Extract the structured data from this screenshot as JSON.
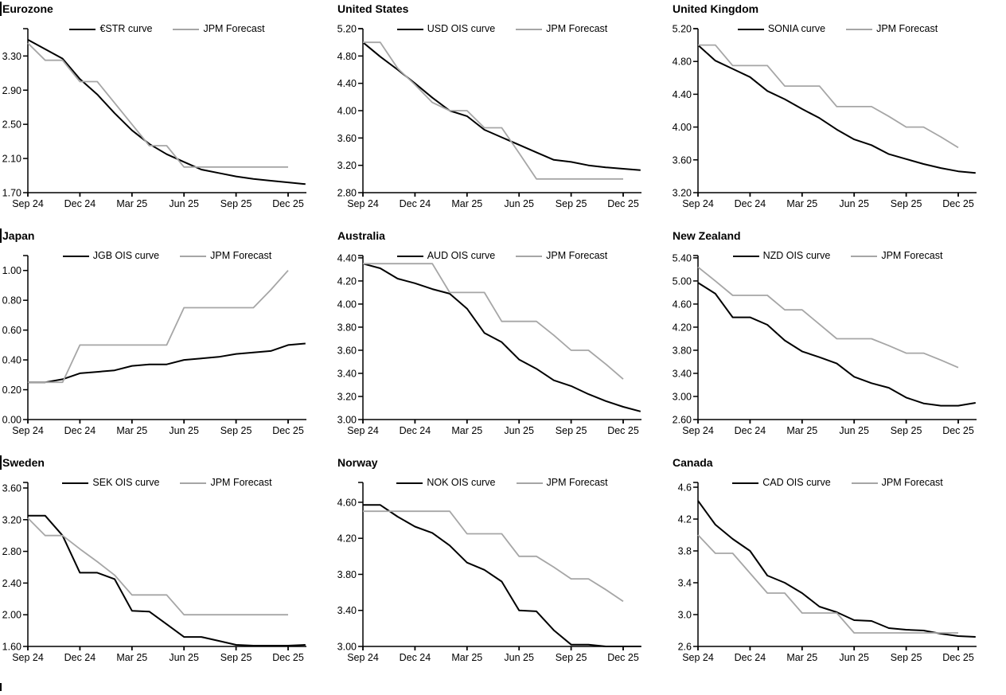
{
  "colors": {
    "curve": "#000000",
    "forecast": "#a6a6a6",
    "axis": "#000000",
    "text": "#000000"
  },
  "x_axis": {
    "tick_labels": [
      "Sep 24",
      "Dec 24",
      "Mar 25",
      "Jun 25",
      "Sep 25",
      "Dec 25"
    ],
    "tick_indices": [
      0,
      3,
      6,
      9,
      12,
      15
    ]
  },
  "chart_data": [
    {
      "type": "line",
      "title": "Eurozone",
      "edge_mark": true,
      "x_tick_labels": [
        "Sep 24",
        "Dec 24",
        "Mar 25",
        "Jun 25",
        "Sep 25",
        "Dec 25"
      ],
      "y_tick_labels": [
        "1.70",
        "2.10",
        "2.50",
        "2.90",
        "3.30"
      ],
      "y_tick_values": [
        1.7,
        2.1,
        2.5,
        2.9,
        3.3
      ],
      "ylim": [
        1.7,
        3.62
      ],
      "series": [
        {
          "name": "€STR curve",
          "color_key": "curve",
          "values": [
            3.49,
            3.38,
            3.27,
            3.03,
            2.85,
            2.63,
            2.43,
            2.27,
            2.15,
            2.06,
            1.97,
            1.93,
            1.89,
            1.86,
            1.84,
            1.82,
            1.8
          ]
        },
        {
          "name": "JPM Forecast",
          "color_key": "forecast",
          "values": [
            3.45,
            3.25,
            3.25,
            3.0,
            3.0,
            2.75,
            2.5,
            2.25,
            2.25,
            2.0,
            2.0,
            2.0,
            2.0,
            2.0,
            2.0,
            2.0
          ]
        }
      ]
    },
    {
      "type": "line",
      "title": "United States",
      "edge_mark": false,
      "x_tick_labels": [
        "Sep 24",
        "Dec 24",
        "Mar 25",
        "Jun 25",
        "Sep 25",
        "Dec 25"
      ],
      "y_tick_labels": [
        "2.80",
        "3.20",
        "3.60",
        "4.00",
        "4.40",
        "4.80",
        "5.20"
      ],
      "y_tick_values": [
        2.8,
        3.2,
        3.6,
        4.0,
        4.4,
        4.8,
        5.2
      ],
      "ylim": [
        2.8,
        5.2
      ],
      "series": [
        {
          "name": "USD OIS curve",
          "color_key": "curve",
          "values": [
            5.0,
            4.79,
            4.6,
            4.4,
            4.19,
            4.0,
            3.92,
            3.72,
            3.61,
            3.5,
            3.39,
            3.28,
            3.25,
            3.2,
            3.17,
            3.15,
            3.13
          ]
        },
        {
          "name": "JPM Forecast",
          "color_key": "forecast",
          "values": [
            5.0,
            5.0,
            4.62,
            4.38,
            4.12,
            4.0,
            4.0,
            3.75,
            3.75,
            3.38,
            3.0,
            3.0,
            3.0,
            3.0,
            3.0,
            3.0
          ]
        }
      ]
    },
    {
      "type": "line",
      "title": "United Kingdom",
      "edge_mark": false,
      "x_tick_labels": [
        "Sep 24",
        "Dec 24",
        "Mar 25",
        "Jun 25",
        "Sep 25",
        "Dec 25"
      ],
      "y_tick_labels": [
        "3.20",
        "3.60",
        "4.00",
        "4.40",
        "4.80",
        "5.20"
      ],
      "y_tick_values": [
        3.2,
        3.6,
        4.0,
        4.4,
        4.8,
        5.2
      ],
      "ylim": [
        3.2,
        5.2
      ],
      "series": [
        {
          "name": "SONIA curve",
          "color_key": "curve",
          "values": [
            5.0,
            4.81,
            4.71,
            4.61,
            4.44,
            4.34,
            4.22,
            4.11,
            3.97,
            3.85,
            3.78,
            3.67,
            3.61,
            3.55,
            3.5,
            3.46,
            3.44
          ]
        },
        {
          "name": "JPM Forecast",
          "color_key": "forecast",
          "values": [
            5.0,
            5.0,
            4.75,
            4.75,
            4.75,
            4.5,
            4.5,
            4.5,
            4.25,
            4.25,
            4.25,
            4.13,
            4.0,
            4.0,
            3.88,
            3.75
          ]
        }
      ]
    },
    {
      "type": "line",
      "title": "Japan",
      "edge_mark": true,
      "x_tick_labels": [
        "Sep 24",
        "Dec 24",
        "Mar 25",
        "Jun 25",
        "Sep 25",
        "Dec 25"
      ],
      "y_tick_labels": [
        "0.00",
        "0.20",
        "0.40",
        "0.60",
        "0.80",
        "1.00"
      ],
      "y_tick_values": [
        0.0,
        0.2,
        0.4,
        0.6,
        0.8,
        1.0
      ],
      "ylim": [
        0.0,
        1.1
      ],
      "series": [
        {
          "name": "JGB OIS curve",
          "color_key": "curve",
          "values": [
            0.25,
            0.25,
            0.27,
            0.31,
            0.32,
            0.33,
            0.36,
            0.37,
            0.37,
            0.4,
            0.41,
            0.42,
            0.44,
            0.45,
            0.46,
            0.5,
            0.51
          ]
        },
        {
          "name": "JPM Forecast",
          "color_key": "forecast",
          "values": [
            0.25,
            0.25,
            0.25,
            0.5,
            0.5,
            0.5,
            0.5,
            0.5,
            0.5,
            0.75,
            0.75,
            0.75,
            0.75,
            0.75,
            0.87,
            1.0
          ]
        }
      ]
    },
    {
      "type": "line",
      "title": "Australia",
      "edge_mark": false,
      "x_tick_labels": [
        "Sep 24",
        "Dec 24",
        "Mar 25",
        "Jun 25",
        "Sep 25",
        "Dec 25"
      ],
      "y_tick_labels": [
        "3.00",
        "3.20",
        "3.40",
        "3.60",
        "3.80",
        "4.00",
        "4.20",
        "4.40"
      ],
      "y_tick_values": [
        3.0,
        3.2,
        3.4,
        3.6,
        3.8,
        4.0,
        4.2,
        4.4
      ],
      "ylim": [
        3.0,
        4.42
      ],
      "series": [
        {
          "name": "AUD OIS curve",
          "color_key": "curve",
          "values": [
            4.35,
            4.31,
            4.22,
            4.18,
            4.13,
            4.09,
            3.96,
            3.75,
            3.67,
            3.52,
            3.44,
            3.34,
            3.29,
            3.22,
            3.16,
            3.11,
            3.07
          ]
        },
        {
          "name": "JPM Forecast",
          "color_key": "forecast",
          "values": [
            4.35,
            4.35,
            4.35,
            4.35,
            4.35,
            4.1,
            4.1,
            4.1,
            3.85,
            3.85,
            3.85,
            3.73,
            3.6,
            3.6,
            3.48,
            3.35
          ]
        }
      ]
    },
    {
      "type": "line",
      "title": "New Zealand",
      "edge_mark": false,
      "x_tick_labels": [
        "Sep 24",
        "Dec 24",
        "Mar 25",
        "Jun 25",
        "Sep 25",
        "Dec 25"
      ],
      "y_tick_labels": [
        "2.60",
        "3.00",
        "3.40",
        "3.80",
        "4.20",
        "4.60",
        "5.00",
        "5.40"
      ],
      "y_tick_values": [
        2.6,
        3.0,
        3.4,
        3.8,
        4.2,
        4.6,
        5.0,
        5.4
      ],
      "ylim": [
        2.6,
        5.44
      ],
      "series": [
        {
          "name": "NZD OIS curve",
          "color_key": "curve",
          "values": [
            4.97,
            4.78,
            4.37,
            4.37,
            4.24,
            3.97,
            3.78,
            3.68,
            3.57,
            3.34,
            3.23,
            3.15,
            2.98,
            2.88,
            2.84,
            2.84,
            2.89
          ]
        },
        {
          "name": "JPM Forecast",
          "color_key": "forecast",
          "values": [
            5.24,
            5.0,
            4.75,
            4.75,
            4.75,
            4.5,
            4.5,
            4.25,
            4.0,
            4.0,
            4.0,
            3.88,
            3.75,
            3.75,
            3.63,
            3.5
          ]
        }
      ]
    },
    {
      "type": "line",
      "title": "Sweden",
      "edge_mark": true,
      "x_tick_labels": [
        "Sep 24",
        "Dec 24",
        "Mar 25",
        "Jun 25",
        "Sep 25",
        "Dec 25"
      ],
      "y_tick_labels": [
        "1.60",
        "2.00",
        "2.40",
        "2.80",
        "3.20",
        "3.60"
      ],
      "y_tick_values": [
        1.6,
        2.0,
        2.4,
        2.8,
        3.2,
        3.6
      ],
      "ylim": [
        1.6,
        3.67
      ],
      "series": [
        {
          "name": "SEK OIS curve",
          "color_key": "curve",
          "values": [
            3.25,
            3.25,
            3.0,
            2.53,
            2.53,
            2.45,
            2.05,
            2.04,
            1.88,
            1.72,
            1.72,
            1.67,
            1.62,
            1.61,
            1.61,
            1.61,
            1.62
          ]
        },
        {
          "name": "JPM Forecast",
          "color_key": "forecast",
          "values": [
            3.22,
            3.0,
            3.0,
            2.83,
            2.67,
            2.5,
            2.25,
            2.25,
            2.25,
            2.0,
            2.0,
            2.0,
            2.0,
            2.0,
            2.0,
            2.0
          ]
        }
      ]
    },
    {
      "type": "line",
      "title": "Norway",
      "edge_mark": false,
      "x_tick_labels": [
        "Sep 24",
        "Dec 24",
        "Mar 25",
        "Jun 25",
        "Sep 25",
        "Dec 25"
      ],
      "y_tick_labels": [
        "3.00",
        "3.40",
        "3.80",
        "4.20",
        "4.60"
      ],
      "y_tick_values": [
        3.0,
        3.4,
        3.8,
        4.2,
        4.6
      ],
      "ylim": [
        3.0,
        4.82
      ],
      "series": [
        {
          "name": "NOK OIS curve",
          "color_key": "curve",
          "values": [
            4.57,
            4.57,
            4.44,
            4.33,
            4.26,
            4.12,
            3.93,
            3.85,
            3.72,
            3.4,
            3.39,
            3.18,
            3.02,
            3.02,
            3.0,
            3.0,
            3.0
          ]
        },
        {
          "name": "JPM Forecast",
          "color_key": "forecast",
          "values": [
            4.5,
            4.5,
            4.5,
            4.5,
            4.5,
            4.5,
            4.25,
            4.25,
            4.25,
            4.0,
            4.0,
            3.88,
            3.75,
            3.75,
            3.63,
            3.5
          ]
        }
      ]
    },
    {
      "type": "line",
      "title": "Canada",
      "edge_mark": false,
      "x_tick_labels": [
        "Sep 24",
        "Dec 24",
        "Mar 25",
        "Jun 25",
        "Sep 25",
        "Dec 25"
      ],
      "y_tick_labels": [
        "2.6",
        "3.0",
        "3.4",
        "3.8",
        "4.2",
        "4.6"
      ],
      "y_tick_values": [
        2.6,
        3.0,
        3.4,
        3.8,
        4.2,
        4.6
      ],
      "ylim": [
        2.6,
        4.66
      ],
      "series": [
        {
          "name": "CAD OIS curve",
          "color_key": "curve",
          "values": [
            4.43,
            4.13,
            3.95,
            3.8,
            3.49,
            3.4,
            3.27,
            3.1,
            3.03,
            2.93,
            2.92,
            2.83,
            2.81,
            2.8,
            2.76,
            2.73,
            2.72
          ]
        },
        {
          "name": "JPM Forecast",
          "color_key": "forecast",
          "values": [
            4.0,
            3.77,
            3.77,
            3.52,
            3.27,
            3.27,
            3.02,
            3.02,
            3.02,
            2.77,
            2.77,
            2.77,
            2.77,
            2.77,
            2.77,
            2.77
          ]
        }
      ]
    }
  ],
  "page_marks": {
    "bottom_left_mark": true
  }
}
